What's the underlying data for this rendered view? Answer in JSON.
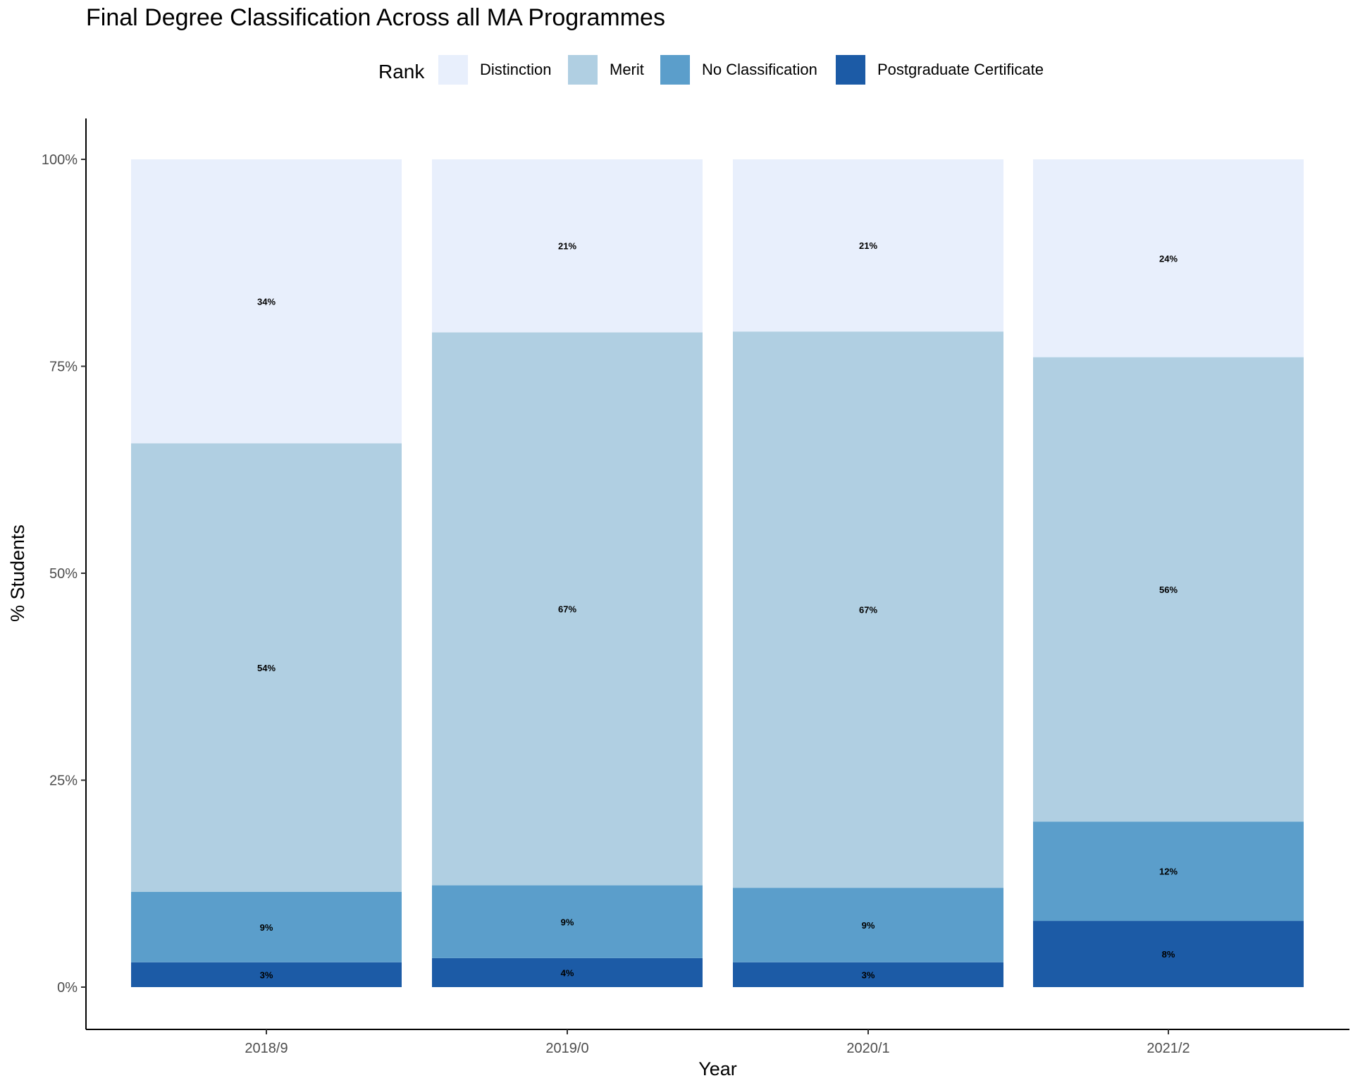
{
  "chart_data": {
    "type": "bar",
    "stacked": true,
    "title": "Final Degree Classification Across all MA Programmes",
    "xlabel": "Year",
    "ylabel": "% Students",
    "ylim": [
      0,
      1
    ],
    "yticks": [
      "0%",
      "25%",
      "50%",
      "75%",
      "100%"
    ],
    "ytick_values": [
      0,
      0.25,
      0.5,
      0.75,
      1.0
    ],
    "categories": [
      "2018/9",
      "2019/0",
      "2020/1",
      "2021/2"
    ],
    "legend": {
      "title": "Rank",
      "placement": "top"
    },
    "series": [
      {
        "name": "Postgraduate Certificate",
        "color": "#1c5ba6",
        "values": [
          0.03,
          0.035,
          0.03,
          0.08
        ],
        "labels": [
          "3%",
          "4%",
          "3%",
          "8%"
        ]
      },
      {
        "name": "No Classification",
        "color": "#5b9ecb",
        "values": [
          0.085,
          0.088,
          0.09,
          0.12
        ],
        "labels": [
          "9%",
          "9%",
          "9%",
          "12%"
        ]
      },
      {
        "name": "Merit",
        "color": "#b0cfe2",
        "values": [
          0.542,
          0.668,
          0.672,
          0.561
        ],
        "labels": [
          "54%",
          "67%",
          "67%",
          "56%"
        ]
      },
      {
        "name": "Distinction",
        "color": "#e8effc",
        "values": [
          0.343,
          0.209,
          0.208,
          0.239
        ],
        "labels": [
          "34%",
          "21%",
          "21%",
          "24%"
        ]
      }
    ],
    "legend_order": [
      "Distinction",
      "Merit",
      "No Classification",
      "Postgraduate Certificate"
    ],
    "grid": false
  }
}
